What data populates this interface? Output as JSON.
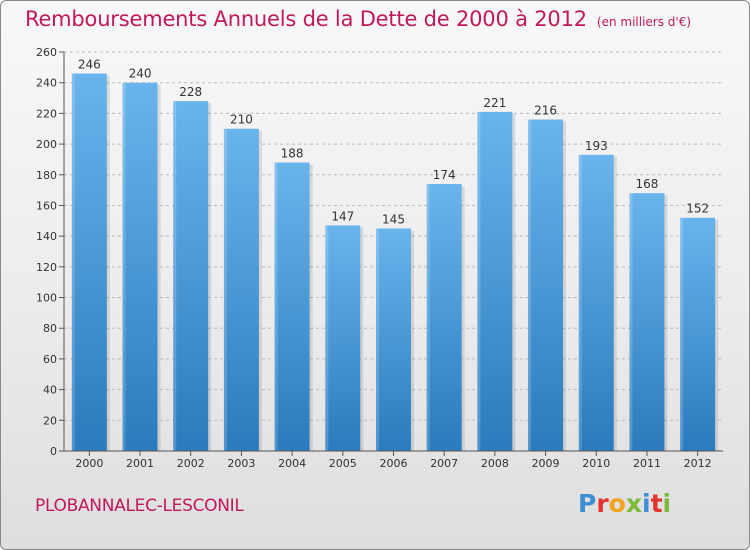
{
  "chart": {
    "title": "Remboursements Annuels de la Dette de 2000 à 2012",
    "subtitle": "(en milliers d'€)",
    "footer_label": "PLOBANNALEC-LESCONIL",
    "logo_text": "Proxiti"
  },
  "colors": {
    "bar_top": "#6ab4ec",
    "bar_bottom": "#2a7bbd",
    "title": "#c2185b",
    "grid": "#bdbdbd"
  },
  "chart_data": {
    "type": "bar",
    "title": "Remboursements Annuels de la Dette de 2000 à 2012",
    "subtitle": "(en milliers d'€)",
    "categories": [
      "2000",
      "2001",
      "2002",
      "2003",
      "2004",
      "2005",
      "2006",
      "2007",
      "2008",
      "2009",
      "2010",
      "2011",
      "2012"
    ],
    "values": [
      246,
      240,
      228,
      210,
      188,
      147,
      145,
      174,
      221,
      216,
      193,
      168,
      152
    ],
    "xlabel": "",
    "ylabel": "",
    "ylim": [
      0,
      260
    ],
    "yticks": [
      0,
      20,
      40,
      60,
      80,
      100,
      120,
      140,
      160,
      180,
      200,
      220,
      240,
      260
    ],
    "grid": true,
    "data_labels": true
  }
}
